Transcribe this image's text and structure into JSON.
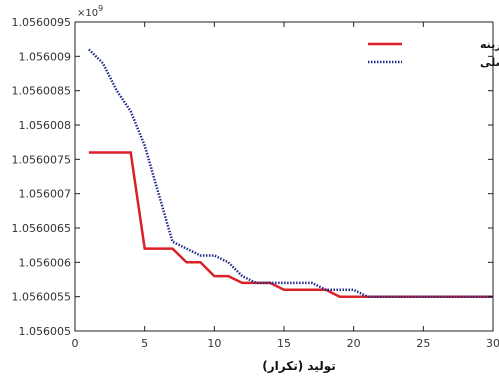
{
  "chart_data": {
    "type": "line",
    "title": "",
    "xlabel": "تولید (تکرار)",
    "ylabel": "",
    "y_multiplier": "×10",
    "y_multiplier_exp": "9",
    "xlim": [
      0,
      30
    ],
    "ylim": [
      1.056005,
      1.0560095
    ],
    "x_ticks": [
      "0",
      "5",
      "10",
      "15",
      "20",
      "25",
      "30"
    ],
    "y_ticks": [
      "1.056005",
      "1.056006",
      "1.056006",
      "1.056006",
      "1.056007",
      "1.056007",
      "1.056008",
      "1.056008",
      "1.056009",
      "1.056009"
    ],
    "y_tick_labels": [
      "1.056005",
      "1.0560055",
      "1.056006",
      "1.0560065",
      "1.056007",
      "1.0560075",
      "1.056008",
      "1.0560085",
      "1.056009",
      "1.0560095"
    ],
    "grid": false,
    "legend_position": "top-right",
    "series": [
      {
        "name": "بهترین هزینه",
        "color": "#d92128",
        "style": "solid",
        "x": [
          1,
          2,
          3,
          4,
          5,
          6,
          7,
          8,
          9,
          10,
          11,
          12,
          13,
          14,
          15,
          16,
          17,
          18,
          19,
          20,
          21,
          22,
          23,
          24,
          25,
          26,
          27,
          28,
          29,
          30
        ],
        "y": [
          1.0560076,
          1.0560076,
          1.0560076,
          1.0560076,
          1.0560062,
          1.0560062,
          1.0560062,
          1.056006,
          1.056006,
          1.0560058,
          1.0560058,
          1.0560057,
          1.0560057,
          1.0560057,
          1.0560056,
          1.0560056,
          1.0560056,
          1.0560056,
          1.0560055,
          1.0560055,
          1.0560055,
          1.0560055,
          1.0560055,
          1.0560055,
          1.0560055,
          1.0560055,
          1.0560055,
          1.0560055,
          1.0560055,
          1.0560055
        ]
      },
      {
        "name": "هزینه اصلی",
        "color": "#1f2a8a",
        "style": "dotted",
        "x": [
          1,
          2,
          3,
          4,
          5,
          6,
          7,
          8,
          9,
          10,
          11,
          12,
          13,
          14,
          15,
          16,
          17,
          18,
          19,
          20,
          21,
          22,
          23,
          24,
          25,
          26,
          27,
          28,
          29,
          30
        ],
        "y": [
          1.0560091,
          1.0560089,
          1.0560085,
          1.0560082,
          1.0560077,
          1.056007,
          1.0560063,
          1.0560062,
          1.0560061,
          1.0560061,
          1.056006,
          1.0560058,
          1.0560057,
          1.0560057,
          1.0560057,
          1.0560057,
          1.0560057,
          1.0560056,
          1.0560056,
          1.0560056,
          1.0560055,
          1.0560055,
          1.0560055,
          1.0560055,
          1.0560055,
          1.0560055,
          1.0560055,
          1.0560055,
          1.0560055,
          1.0560055
        ]
      }
    ]
  }
}
